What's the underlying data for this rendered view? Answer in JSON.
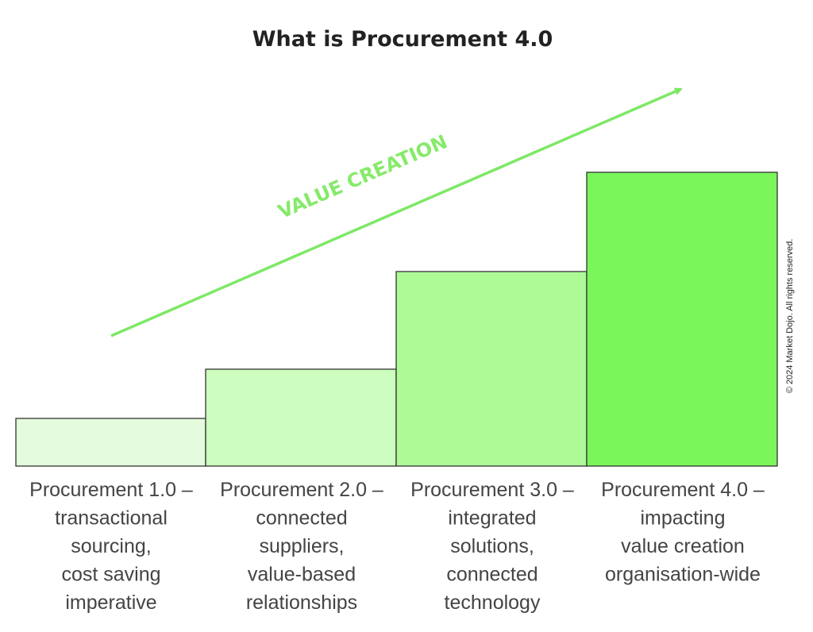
{
  "title": "What is Procurement 4.0",
  "arrow_label": "VALUE CREATION",
  "copyright": "© 2024 Market Dojo. All rights reserved.",
  "steps": [
    {
      "lines": [
        "Procurement 1.0 –",
        "transactional",
        "sourcing,",
        "cost saving",
        "imperative"
      ]
    },
    {
      "lines": [
        "Procurement 2.0 –",
        "connected",
        "suppliers,",
        "value-based",
        "relationships"
      ]
    },
    {
      "lines": [
        "Procurement 3.0 –",
        "integrated",
        "solutions,",
        "connected",
        "technology"
      ]
    },
    {
      "lines": [
        "Procurement 4.0 –",
        "impacting",
        "value creation",
        "organisation-wide"
      ]
    }
  ]
}
